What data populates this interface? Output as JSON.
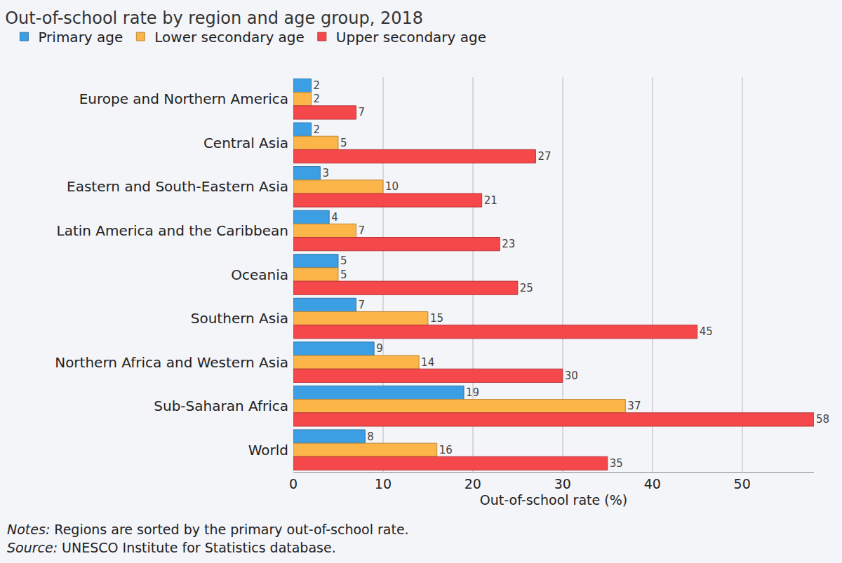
{
  "chart_data": {
    "type": "bar",
    "orientation": "horizontal",
    "title": "Out-of-school rate by region and age group, 2018",
    "x_label": "Out-of-school rate (%)",
    "categories": [
      "Europe and Northern America",
      "Central Asia",
      "Eastern and South-Eastern Asia",
      "Latin America and the Caribbean",
      "Oceania",
      "Southern Asia",
      "Northern Africa and Western Asia",
      "Sub-Saharan Africa",
      "World"
    ],
    "series": [
      {
        "name": "Primary age",
        "color": "#3d9fe3",
        "values": [
          2,
          2,
          3,
          4,
          5,
          7,
          9,
          19,
          8
        ]
      },
      {
        "name": "Lower secondary age",
        "color": "#fbb548",
        "values": [
          2,
          5,
          10,
          7,
          5,
          15,
          14,
          37,
          16
        ]
      },
      {
        "name": "Upper secondary age",
        "color": "#f5484b",
        "values": [
          7,
          27,
          21,
          23,
          25,
          45,
          30,
          58,
          35
        ]
      }
    ],
    "xlim": [
      0,
      58
    ],
    "xticks": [
      0,
      10,
      20,
      30,
      40,
      50
    ],
    "grid": true,
    "legend": "top",
    "data_labels": true,
    "annotations": [
      {
        "prefix": "Notes:",
        "text": "Regions are sorted by the primary out-of-school rate."
      },
      {
        "prefix": "Source:",
        "text": "UNESCO Institute for Statistics database."
      }
    ]
  }
}
